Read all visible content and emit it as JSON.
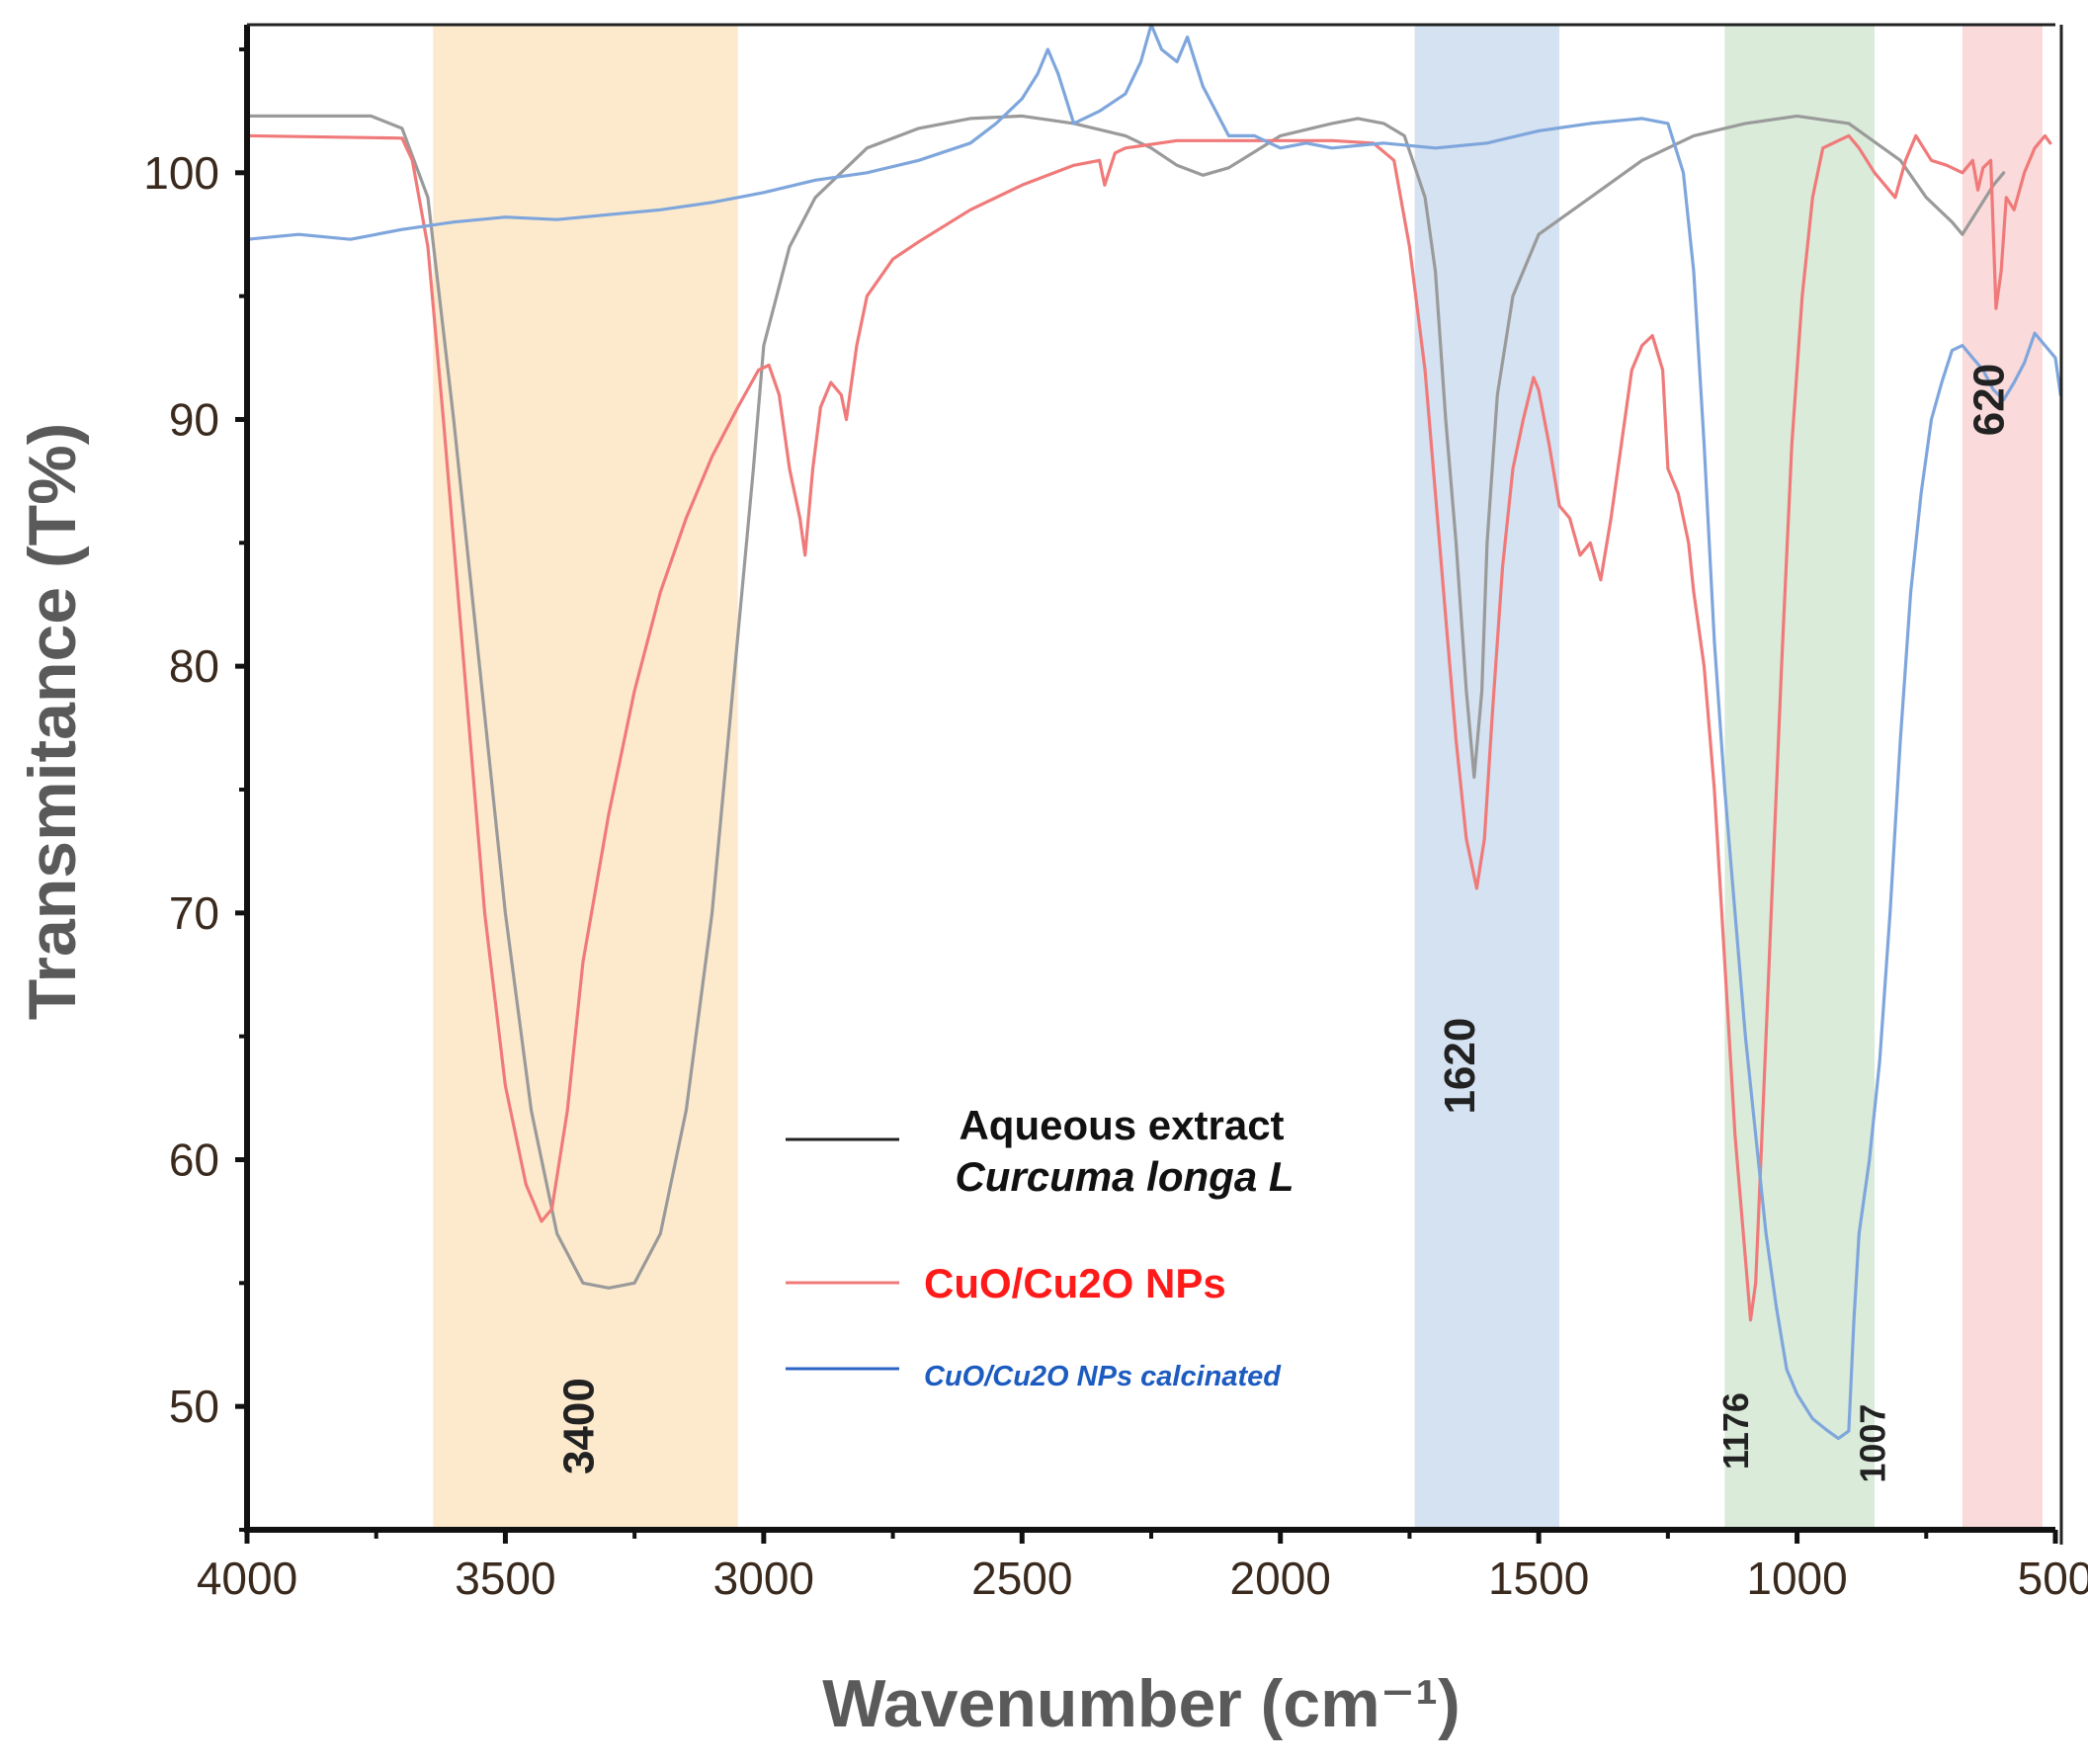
{
  "chart_data": {
    "type": "line",
    "title": "",
    "xlabel": "Wavenumber (cm⁻¹)",
    "ylabel": "Transmitance (T%)",
    "xlim": [
      4000,
      500
    ],
    "ylim": [
      45,
      106
    ],
    "x_ticks": [
      4000,
      3500,
      3000,
      2500,
      2000,
      1500,
      1000,
      500
    ],
    "x_tick_labels": [
      "4000",
      "3500",
      "3000",
      "2500",
      "2000",
      "1500",
      "1000",
      "500"
    ],
    "y_ticks": [
      50,
      60,
      70,
      80,
      90,
      100
    ],
    "y_tick_labels": [
      "50",
      "60",
      "70",
      "80",
      "90",
      "100"
    ],
    "grid": false,
    "bands": [
      {
        "name": "band-3400",
        "from": 3640,
        "to": 3050,
        "color": "#fde8c8"
      },
      {
        "name": "band-1620",
        "from": 1740,
        "to": 1460,
        "color": "#cfdff0"
      },
      {
        "name": "band-1176",
        "from": 1140,
        "to": 850,
        "color": "#d6e9d6"
      },
      {
        "name": "band-620",
        "from": 680,
        "to": 525,
        "color": "#fad6d6"
      }
    ],
    "series": [
      {
        "name": "Aqueous extract Curcuma longa L",
        "color": "#9a9a9a",
        "points": [
          [
            4000,
            102.3
          ],
          [
            3760,
            102.3
          ],
          [
            3700,
            101.8
          ],
          [
            3650,
            99
          ],
          [
            3600,
            90
          ],
          [
            3550,
            80
          ],
          [
            3500,
            70
          ],
          [
            3450,
            62
          ],
          [
            3400,
            57
          ],
          [
            3350,
            55
          ],
          [
            3300,
            54.8
          ],
          [
            3250,
            55
          ],
          [
            3200,
            57
          ],
          [
            3150,
            62
          ],
          [
            3100,
            70
          ],
          [
            3060,
            79
          ],
          [
            3020,
            88
          ],
          [
            3000,
            93
          ],
          [
            2950,
            97
          ],
          [
            2900,
            99
          ],
          [
            2800,
            101
          ],
          [
            2700,
            101.8
          ],
          [
            2600,
            102.2
          ],
          [
            2500,
            102.3
          ],
          [
            2400,
            102
          ],
          [
            2300,
            101.5
          ],
          [
            2250,
            101
          ],
          [
            2200,
            100.3
          ],
          [
            2150,
            99.9
          ],
          [
            2100,
            100.2
          ],
          [
            2000,
            101.5
          ],
          [
            1900,
            102
          ],
          [
            1850,
            102.2
          ],
          [
            1800,
            102
          ],
          [
            1760,
            101.5
          ],
          [
            1720,
            99
          ],
          [
            1700,
            96
          ],
          [
            1680,
            90
          ],
          [
            1660,
            85
          ],
          [
            1640,
            79
          ],
          [
            1625,
            75.5
          ],
          [
            1610,
            79
          ],
          [
            1600,
            85
          ],
          [
            1580,
            91
          ],
          [
            1550,
            95
          ],
          [
            1500,
            97.5
          ],
          [
            1400,
            99
          ],
          [
            1300,
            100.5
          ],
          [
            1200,
            101.5
          ],
          [
            1100,
            102
          ],
          [
            1000,
            102.3
          ],
          [
            900,
            102
          ],
          [
            800,
            100.5
          ],
          [
            750,
            99
          ],
          [
            700,
            98
          ],
          [
            680,
            97.5
          ],
          [
            650,
            98.5
          ],
          [
            620,
            99.5
          ],
          [
            600,
            100
          ]
        ]
      },
      {
        "name": "CuO/Cu2O NPs",
        "color": "#f07a7a",
        "points": [
          [
            4000,
            101.5
          ],
          [
            3700,
            101.4
          ],
          [
            3680,
            100.5
          ],
          [
            3650,
            97
          ],
          [
            3620,
            90
          ],
          [
            3580,
            80
          ],
          [
            3540,
            70
          ],
          [
            3500,
            63
          ],
          [
            3460,
            59
          ],
          [
            3430,
            57.5
          ],
          [
            3410,
            58
          ],
          [
            3380,
            62
          ],
          [
            3350,
            68
          ],
          [
            3300,
            74
          ],
          [
            3250,
            79
          ],
          [
            3200,
            83
          ],
          [
            3150,
            86
          ],
          [
            3100,
            88.5
          ],
          [
            3050,
            90.5
          ],
          [
            3010,
            92
          ],
          [
            2990,
            92.2
          ],
          [
            2970,
            91
          ],
          [
            2950,
            88
          ],
          [
            2930,
            86
          ],
          [
            2920,
            84.5
          ],
          [
            2905,
            88
          ],
          [
            2890,
            90.5
          ],
          [
            2870,
            91.5
          ],
          [
            2850,
            91
          ],
          [
            2840,
            90
          ],
          [
            2820,
            93
          ],
          [
            2800,
            95
          ],
          [
            2750,
            96.5
          ],
          [
            2700,
            97.2
          ],
          [
            2600,
            98.5
          ],
          [
            2500,
            99.5
          ],
          [
            2400,
            100.3
          ],
          [
            2350,
            100.5
          ],
          [
            2340,
            99.5
          ],
          [
            2320,
            100.8
          ],
          [
            2300,
            101
          ],
          [
            2200,
            101.3
          ],
          [
            2100,
            101.3
          ],
          [
            2000,
            101.3
          ],
          [
            1900,
            101.3
          ],
          [
            1820,
            101.2
          ],
          [
            1780,
            100.5
          ],
          [
            1750,
            97
          ],
          [
            1720,
            92
          ],
          [
            1700,
            87
          ],
          [
            1680,
            82
          ],
          [
            1660,
            77
          ],
          [
            1640,
            73
          ],
          [
            1620,
            71
          ],
          [
            1605,
            73
          ],
          [
            1590,
            78
          ],
          [
            1570,
            84
          ],
          [
            1550,
            88
          ],
          [
            1530,
            90
          ],
          [
            1510,
            91.7
          ],
          [
            1500,
            91.2
          ],
          [
            1480,
            89
          ],
          [
            1460,
            86.5
          ],
          [
            1440,
            86
          ],
          [
            1420,
            84.5
          ],
          [
            1400,
            85
          ],
          [
            1380,
            83.5
          ],
          [
            1360,
            86
          ],
          [
            1340,
            89
          ],
          [
            1320,
            92
          ],
          [
            1300,
            93
          ],
          [
            1280,
            93.4
          ],
          [
            1260,
            92
          ],
          [
            1250,
            88
          ],
          [
            1230,
            87
          ],
          [
            1210,
            85
          ],
          [
            1200,
            83
          ],
          [
            1180,
            80
          ],
          [
            1160,
            75
          ],
          [
            1140,
            68
          ],
          [
            1120,
            61
          ],
          [
            1100,
            56
          ],
          [
            1090,
            53.5
          ],
          [
            1080,
            55
          ],
          [
            1070,
            60
          ],
          [
            1050,
            70
          ],
          [
            1030,
            80
          ],
          [
            1010,
            89
          ],
          [
            990,
            95
          ],
          [
            970,
            99
          ],
          [
            950,
            101
          ],
          [
            920,
            101.3
          ],
          [
            900,
            101.5
          ],
          [
            880,
            101
          ],
          [
            850,
            100
          ],
          [
            830,
            99.5
          ],
          [
            810,
            99
          ],
          [
            790,
            100.5
          ],
          [
            770,
            101.5
          ],
          [
            740,
            100.5
          ],
          [
            710,
            100.3
          ],
          [
            680,
            100
          ],
          [
            660,
            100.5
          ],
          [
            650,
            99.3
          ],
          [
            640,
            100.2
          ],
          [
            625,
            100.5
          ],
          [
            615,
            94.5
          ],
          [
            605,
            96
          ],
          [
            595,
            99
          ],
          [
            580,
            98.5
          ],
          [
            560,
            100
          ],
          [
            540,
            101
          ],
          [
            520,
            101.5
          ],
          [
            510,
            101.2
          ]
        ]
      },
      {
        "name": "CuO/Cu2O NPs calcinated",
        "color": "#7fa6dc",
        "points": [
          [
            4000,
            97.3
          ],
          [
            3900,
            97.5
          ],
          [
            3800,
            97.3
          ],
          [
            3700,
            97.7
          ],
          [
            3600,
            98
          ],
          [
            3500,
            98.2
          ],
          [
            3400,
            98.1
          ],
          [
            3300,
            98.3
          ],
          [
            3200,
            98.5
          ],
          [
            3100,
            98.8
          ],
          [
            3000,
            99.2
          ],
          [
            2900,
            99.7
          ],
          [
            2800,
            100
          ],
          [
            2700,
            100.5
          ],
          [
            2600,
            101.2
          ],
          [
            2550,
            102
          ],
          [
            2500,
            103
          ],
          [
            2470,
            104
          ],
          [
            2450,
            105
          ],
          [
            2430,
            104
          ],
          [
            2400,
            102
          ],
          [
            2350,
            102.5
          ],
          [
            2300,
            103.2
          ],
          [
            2270,
            104.5
          ],
          [
            2250,
            106
          ],
          [
            2230,
            105
          ],
          [
            2200,
            104.5
          ],
          [
            2180,
            105.5
          ],
          [
            2150,
            103.5
          ],
          [
            2100,
            101.5
          ],
          [
            2050,
            101.5
          ],
          [
            2000,
            101
          ],
          [
            1950,
            101.2
          ],
          [
            1900,
            101
          ],
          [
            1800,
            101.2
          ],
          [
            1700,
            101
          ],
          [
            1600,
            101.2
          ],
          [
            1500,
            101.7
          ],
          [
            1400,
            102
          ],
          [
            1300,
            102.2
          ],
          [
            1250,
            102
          ],
          [
            1220,
            100
          ],
          [
            1200,
            96
          ],
          [
            1180,
            89
          ],
          [
            1160,
            81
          ],
          [
            1140,
            75
          ],
          [
            1120,
            70
          ],
          [
            1100,
            65
          ],
          [
            1080,
            61
          ],
          [
            1060,
            57
          ],
          [
            1040,
            54
          ],
          [
            1020,
            51.5
          ],
          [
            1000,
            50.5
          ],
          [
            970,
            49.5
          ],
          [
            940,
            49
          ],
          [
            920,
            48.7
          ],
          [
            900,
            49
          ],
          [
            890,
            53.5
          ],
          [
            880,
            57
          ],
          [
            860,
            60
          ],
          [
            840,
            64
          ],
          [
            820,
            70
          ],
          [
            800,
            77
          ],
          [
            780,
            83
          ],
          [
            760,
            87
          ],
          [
            740,
            90
          ],
          [
            720,
            91.5
          ],
          [
            700,
            92.8
          ],
          [
            680,
            93
          ],
          [
            660,
            92.5
          ],
          [
            640,
            92
          ],
          [
            620,
            91.2
          ],
          [
            600,
            90.8
          ],
          [
            580,
            91.5
          ],
          [
            560,
            92.3
          ],
          [
            540,
            93.5
          ],
          [
            520,
            93
          ],
          [
            500,
            92.5
          ],
          [
            490,
            91
          ]
        ]
      }
    ],
    "annotations": [
      {
        "name": "annotation-3400",
        "text": "3400",
        "x": 3330,
        "y": 49.2,
        "rotation": -90
      },
      {
        "name": "annotation-1620",
        "text": "1620",
        "x": 1625,
        "y": 63.8,
        "rotation": -90
      },
      {
        "name": "annotation-1176",
        "text": "1176",
        "x": 1095,
        "y": 49,
        "rotation": -90
      },
      {
        "name": "annotation-1007",
        "text": "1007",
        "x": 830,
        "y": 48.5,
        "rotation": -90
      },
      {
        "name": "annotation-620",
        "text": "620",
        "x": 600,
        "y": 90.8,
        "rotation": -90
      }
    ],
    "legend": {
      "position": "center",
      "entries": [
        {
          "line1": "Aqueous  extract",
          "line2": "Curcuma longa L",
          "text_color": "#111111",
          "line_color": "#222222"
        },
        {
          "line1": "CuO/Cu2O NPs",
          "line2": "",
          "text_color": "#ff1a1a",
          "line_color": "#f07a7a"
        },
        {
          "line1": "CuO/Cu2O NPs calcinated",
          "line2": "",
          "text_color": "#1c5bbf",
          "line_color": "#2c64c4"
        }
      ]
    }
  }
}
